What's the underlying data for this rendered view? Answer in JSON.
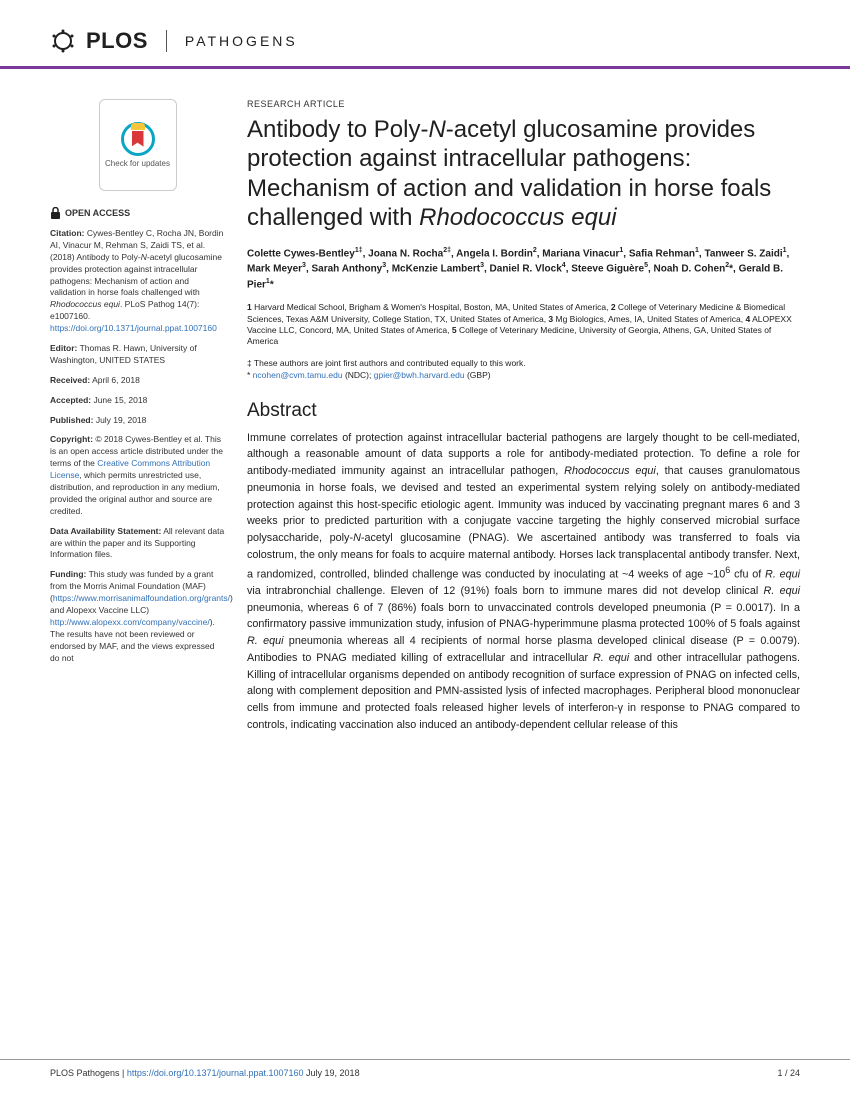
{
  "journal": {
    "brand": "PLOS",
    "name": "PATHOGENS"
  },
  "checkUpdates": "Check for updates",
  "openAccess": "OPEN ACCESS",
  "sidebar": {
    "citationLabel": "Citation:",
    "citation": " Cywes-Bentley C, Rocha JN, Bordin AI, Vinacur M, Rehman S, Zaidi TS, et al. (2018) Antibody to Poly-",
    "citationItalic": "N",
    "citation2": "-acetyl glucosamine provides protection against intracellular pathogens: Mechanism of action and validation in horse foals challenged with ",
    "citationItalic2": "Rhodococcus equi",
    "citationEnd": ". PLoS Pathog 14(7): e1007160. ",
    "citationLink": "https://doi.org/10.1371/journal.ppat.1007160",
    "editorLabel": "Editor:",
    "editor": " Thomas R. Hawn, University of Washington, UNITED STATES",
    "receivedLabel": "Received:",
    "received": " April 6, 2018",
    "acceptedLabel": "Accepted:",
    "accepted": " June 15, 2018",
    "publishedLabel": "Published:",
    "published": " July 19, 2018",
    "copyrightLabel": "Copyright:",
    "copyright": " © 2018 Cywes-Bentley et al. This is an open access article distributed under the terms of the ",
    "ccLink": "Creative Commons Attribution License",
    "copyrightEnd": ", which permits unrestricted use, distribution, and reproduction in any medium, provided the original author and source are credited.",
    "dataLabel": "Data Availability Statement:",
    "data": " All relevant data are within the paper and its Supporting Information files.",
    "fundingLabel": "Funding:",
    "funding": " This study was funded by a grant from the Morris Animal Foundation (MAF) (",
    "fundLink1": "https://www.morrisanimalfoundation.org/grants/",
    "fundingMid": ") and Alopexx Vaccine LLC) ",
    "fundLink2": "http://www.alopexx.com/company/vaccine/",
    "fundingEnd": "). The results have not been reviewed or endorsed by MAF, and the views expressed do not"
  },
  "article": {
    "type": "RESEARCH ARTICLE",
    "titlePart1": "Antibody to Poly-",
    "titleItalic1": "N",
    "titlePart2": "-acetyl glucosamine provides protection against intracellular pathogens: Mechanism of action and validation in horse foals challenged with ",
    "titleItalic2": "Rhodococcus equi",
    "authors": "Colette Cywes-Bentley<sup>1‡</sup>, Joana N. Rocha<sup>2‡</sup>, Angela I. Bordin<sup>2</sup>, Mariana Vinacur<sup>1</sup>, Safia Rehman<sup>1</sup>, Tanweer S. Zaidi<sup>1</sup>, Mark Meyer<sup>3</sup>, Sarah Anthony<sup>3</sup>, McKenzie Lambert<sup>3</sup>, Daniel R. Vlock<sup>4</sup>, Steeve Giguère<sup>5</sup>, Noah D. Cohen<sup>2</sup>*, Gerald B. Pier<sup>1</sup>*",
    "affiliations": "<b>1</b> Harvard Medical School, Brigham & Women's Hospital, Boston, MA, United States of America, <b>2</b> College of Veterinary Medicine & Biomedical Sciences, Texas A&M University, College Station, TX, United States of America, <b>3</b> Mg Biologics, Ames, IA, United States of America, <b>4</b> ALOPEXX Vaccine LLC, Concord, MA, United States of America, <b>5</b> College of Veterinary Medicine, University of Georgia, Athens, GA, United States of America",
    "notesPrefix": "‡ These authors are joint first authors and contributed equally to this work.",
    "notesCorr": "* ",
    "email1": "ncohen@cvm.tamu.edu",
    "notesMid": " (NDC); ",
    "email2": "gpier@bwh.harvard.edu",
    "notesEnd": " (GBP)",
    "abstractHeading": "Abstract",
    "abstractBody": "Immune correlates of protection against intracellular bacterial pathogens are largely thought to be cell-mediated, although a reasonable amount of data supports a role for antibody-mediated protection. To define a role for antibody-mediated immunity against an intracellular pathogen, <em>Rhodococcus equi</em>, that causes granulomatous pneumonia in horse foals, we devised and tested an experimental system relying solely on antibody-mediated protection against this host-specific etiologic agent. Immunity was induced by vaccinating pregnant mares 6 and 3 weeks prior to predicted parturition with a conjugate vaccine targeting the highly conserved microbial surface polysaccharide, poly-<em>N</em>-acetyl glucosamine (PNAG). We ascertained antibody was transferred to foals via colostrum, the only means for foals to acquire maternal antibody. Horses lack transplacental antibody transfer. Next, a randomized, controlled, blinded challenge was conducted by inoculating at ~4 weeks of age ~10<sup>6</sup> cfu of <em>R. equi</em> via intrabronchial challenge. Eleven of 12 (91%) foals born to immune mares did not develop clinical <em>R. equi</em> pneumonia, whereas 6 of 7 (86%) foals born to unvaccinated controls developed pneumonia (P = 0.0017). In a confirmatory passive immunization study, infusion of PNAG-hyperimmune plasma protected 100% of 5 foals against <em>R. equi</em> pneumonia whereas all 4 recipients of normal horse plasma developed clinical disease (P = 0.0079). Antibodies to PNAG mediated killing of extracellular and intracellular <em>R. equi</em> and other intracellular pathogens. Killing of intracellular organisms depended on antibody recognition of surface expression of PNAG on infected cells, along with complement deposition and PMN-assisted lysis of infected macrophages. Peripheral blood mononuclear cells from immune and protected foals released higher levels of interferon-γ in response to PNAG compared to controls, indicating vaccination also induced an antibody-dependent cellular release of this"
  },
  "footer": {
    "left": "PLOS Pathogens | ",
    "doi": "https://doi.org/10.1371/journal.ppat.1007160",
    "date": "   July 19, 2018",
    "page": "1 / 24"
  }
}
